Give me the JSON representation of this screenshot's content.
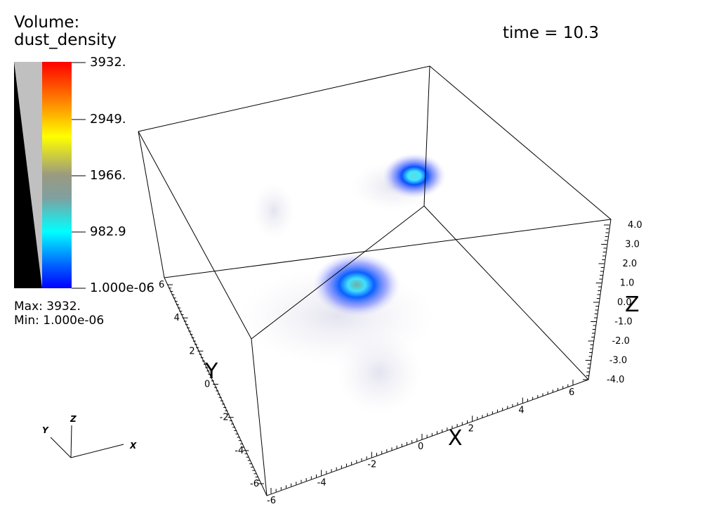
{
  "volume": {
    "title_line1": "Volume:",
    "title_line2": "dust_density",
    "colorbar": {
      "ticks": [
        "3932.",
        "2949.",
        "1966.",
        "982.9",
        "1.000e-06"
      ],
      "colors": [
        "#ff0000",
        "#ff8c00",
        "#ffff00",
        "#9b9b78",
        "#808080",
        "#00ffff",
        "#0000ff"
      ],
      "opacity_ramp": [
        "#000000",
        "#c0c0c0"
      ]
    },
    "max_label": "Max:  3932.",
    "min_label": "Min:  1.000e-06"
  },
  "time_label": "time = 10.3",
  "axes": {
    "x_name": "X",
    "y_name": "Y",
    "z_name": "Z",
    "x_ticks": [
      "-6",
      "-4",
      "-2",
      "0",
      "2",
      "4",
      "6"
    ],
    "y_ticks": [
      "-6",
      "-4",
      "-2",
      "0",
      "2",
      "4",
      "6"
    ],
    "z_ticks": [
      "4.0",
      "3.0",
      "2.0",
      "1.0",
      "0.0",
      "-1.0",
      "-2.0",
      "-3.0",
      "-4.0"
    ]
  },
  "orientation": {
    "x": "X",
    "y": "Y",
    "z": "Z"
  },
  "data_range": {
    "min": 1e-06,
    "max": 3932
  }
}
